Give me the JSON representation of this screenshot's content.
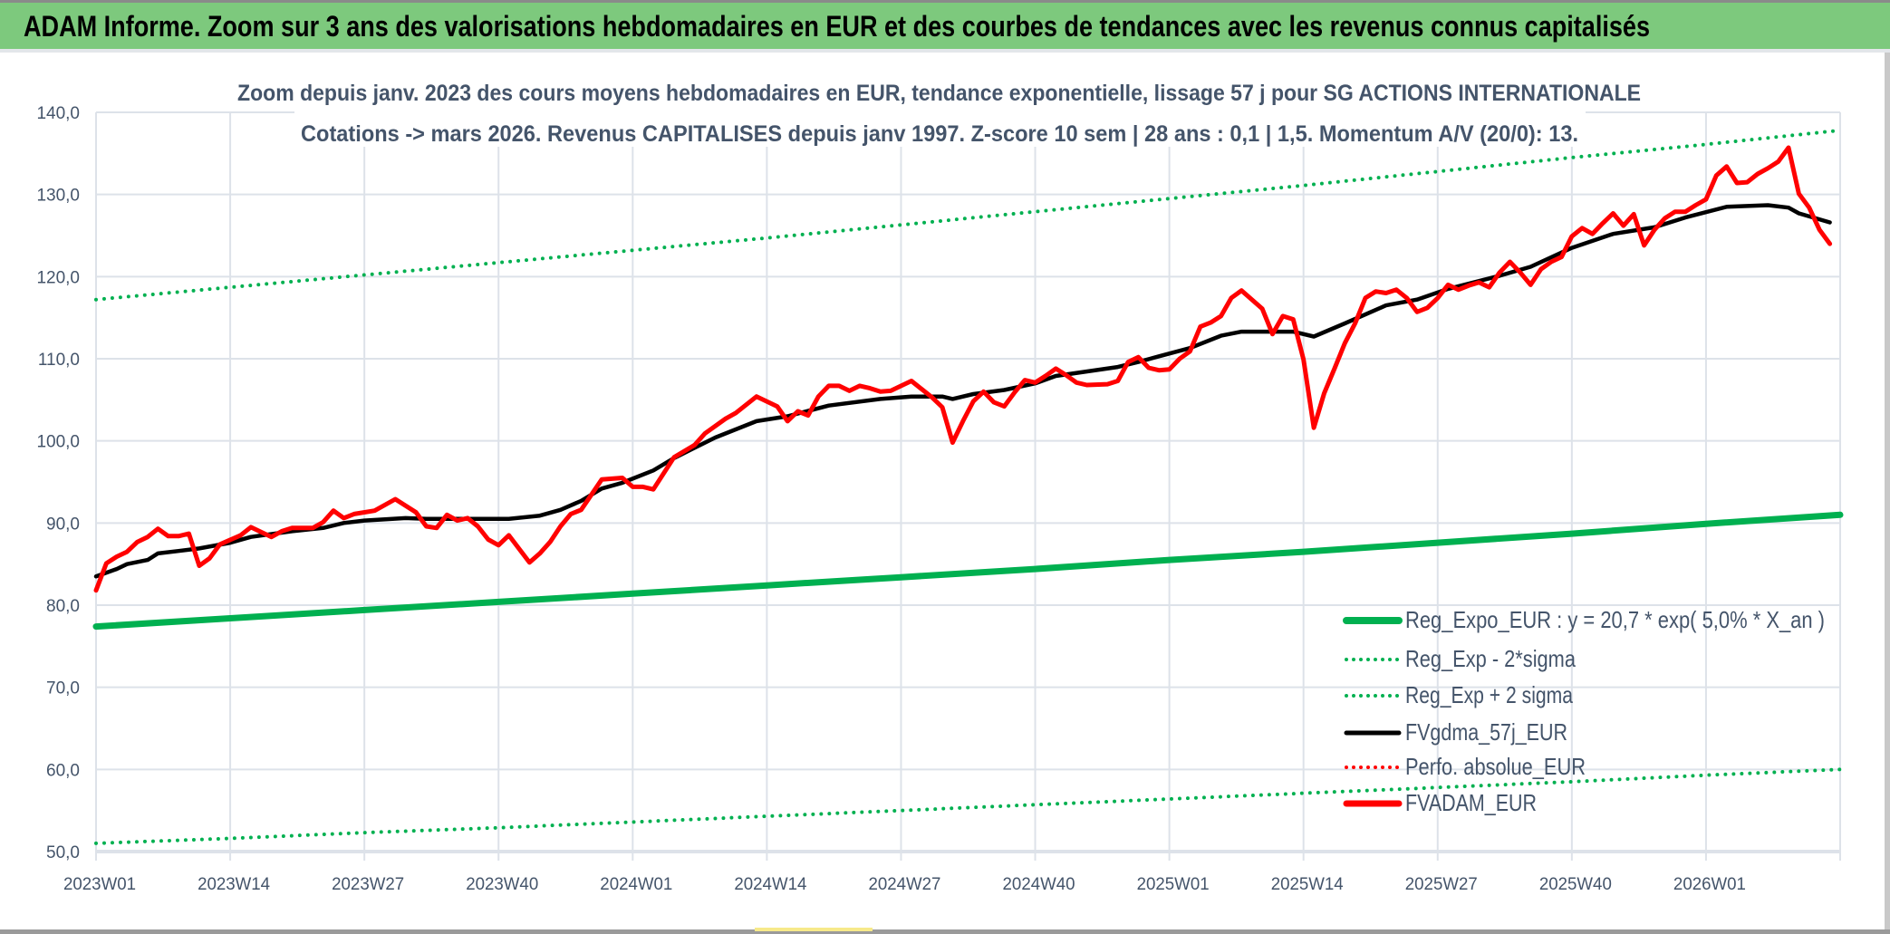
{
  "header": {
    "title": "ADAM Informe. Zoom sur 3 ans des valorisations hebdomadaires en EUR et des courbes de tendances avec les revenus connus capitalisés",
    "background": "#7DC97D"
  },
  "chart_data": {
    "type": "line",
    "title_lines": [
      "Zoom depuis janv. 2023 des cours moyens hebdomadaires en EUR, tendance exponentielle, lissage 57 j pour SG ACTIONS INTERNATIONALE",
      "Cotations -> mars 2026. Revenus CAPITALISES depuis janv 1997. Z-score 10 sem | 28 ans : 0,1 | 1,5. Momentum A/V (20/0): 13."
    ],
    "xlabel": "",
    "ylabel": "",
    "ylim": [
      50,
      140
    ],
    "xlim": [
      "2023W01",
      "2026W14"
    ],
    "grid": true,
    "legend_position": "bottom-right",
    "y_ticks": [
      "140,0",
      "130,0",
      "120,0",
      "110,0",
      "100,0",
      "90,0",
      "80,0",
      "70,0",
      "60,0",
      "50,0"
    ],
    "y_tick_values": [
      140,
      130,
      120,
      110,
      100,
      90,
      80,
      70,
      60,
      50
    ],
    "x_ticks": [
      "2023W01",
      "2023W14",
      "2023W27",
      "2023W40",
      "2024W01",
      "2024W14",
      "2024W27",
      "2024W40",
      "2025W01",
      "2025W14",
      "2025W27",
      "2025W40",
      "2026W01"
    ],
    "series": [
      {
        "name": "Reg_Expo_EUR : y = 20,7 * exp( 5,0% *  X_an )",
        "color": "#00B050",
        "style": "solid",
        "points": [
          [
            "2023W01",
            77.4
          ],
          [
            "2023W14",
            78.4
          ],
          [
            "2023W27",
            79.4
          ],
          [
            "2023W40",
            80.4
          ],
          [
            "2024W01",
            81.4
          ],
          [
            "2024W14",
            82.4
          ],
          [
            "2024W27",
            83.4
          ],
          [
            "2024W40",
            84.4
          ],
          [
            "2025W01",
            85.5
          ],
          [
            "2025W14",
            86.5
          ],
          [
            "2025W27",
            87.6
          ],
          [
            "2025W40",
            88.7
          ],
          [
            "2026W01",
            89.9
          ],
          [
            "2026W14",
            91.0
          ]
        ]
      },
      {
        "name": "Reg_Exp - 2*sigma",
        "color": "#00B050",
        "style": "dotted",
        "points": [
          [
            "2023W01",
            51.0
          ],
          [
            "2023W14",
            51.6
          ],
          [
            "2023W27",
            52.3
          ],
          [
            "2023W40",
            52.9
          ],
          [
            "2024W01",
            53.6
          ],
          [
            "2024W14",
            54.3
          ],
          [
            "2024W27",
            55.0
          ],
          [
            "2024W40",
            55.7
          ],
          [
            "2025W01",
            56.4
          ],
          [
            "2025W14",
            57.1
          ],
          [
            "2025W27",
            57.8
          ],
          [
            "2025W40",
            58.5
          ],
          [
            "2026W01",
            59.3
          ],
          [
            "2026W14",
            60.0
          ]
        ]
      },
      {
        "name": "Reg_Exp + 2 sigma",
        "color": "#00B050",
        "style": "dotted",
        "points": [
          [
            "2023W01",
            117.2
          ],
          [
            "2023W14",
            118.7
          ],
          [
            "2023W27",
            120.2
          ],
          [
            "2023W40",
            121.7
          ],
          [
            "2024W01",
            123.2
          ],
          [
            "2024W14",
            124.7
          ],
          [
            "2024W27",
            126.3
          ],
          [
            "2024W40",
            127.9
          ],
          [
            "2025W01",
            129.5
          ],
          [
            "2025W14",
            131.1
          ],
          [
            "2025W27",
            132.8
          ],
          [
            "2025W40",
            134.5
          ],
          [
            "2026W01",
            136.1
          ],
          [
            "2026W14",
            137.8
          ]
        ]
      },
      {
        "name": "FVgdma_57j_EUR",
        "color": "#000000",
        "style": "solid",
        "points": [
          [
            "2023W01",
            83.5
          ],
          [
            "2023W03",
            84.4
          ],
          [
            "2023W04",
            85.0
          ],
          [
            "2023W06",
            85.5
          ],
          [
            "2023W07",
            86.3
          ],
          [
            "2023W09",
            86.6
          ],
          [
            "2023W11",
            86.9
          ],
          [
            "2023W14",
            87.6
          ],
          [
            "2023W16",
            88.3
          ],
          [
            "2023W20",
            89.0
          ],
          [
            "2023W23",
            89.4
          ],
          [
            "2023W25",
            90.0
          ],
          [
            "2023W27",
            90.3
          ],
          [
            "2023W31",
            90.6
          ],
          [
            "2023W33",
            90.5
          ],
          [
            "2023W37",
            90.5
          ],
          [
            "2023W41",
            90.5
          ],
          [
            "2023W44",
            90.9
          ],
          [
            "2023W46",
            91.6
          ],
          [
            "2023W48",
            92.7
          ],
          [
            "2023W50",
            94.2
          ],
          [
            "2023W52",
            94.9
          ],
          [
            "2024W03",
            96.4
          ],
          [
            "2024W05",
            97.9
          ],
          [
            "2024W09",
            100.4
          ],
          [
            "2024W13",
            102.4
          ],
          [
            "2024W16",
            103.0
          ],
          [
            "2024W20",
            104.3
          ],
          [
            "2024W25",
            105.1
          ],
          [
            "2024W28",
            105.4
          ],
          [
            "2024W31",
            105.4
          ],
          [
            "2024W32",
            105.1
          ],
          [
            "2024W34",
            105.7
          ],
          [
            "2024W37",
            106.2
          ],
          [
            "2024W40",
            107.0
          ],
          [
            "2024W42",
            107.9
          ],
          [
            "2024W48",
            109.0
          ],
          [
            "2024W50",
            109.6
          ],
          [
            "2024W52",
            110.3
          ],
          [
            "2025W03",
            111.3
          ],
          [
            "2025W06",
            112.8
          ],
          [
            "2025W08",
            113.3
          ],
          [
            "2025W10",
            113.3
          ],
          [
            "2025W13",
            113.3
          ],
          [
            "2025W15",
            112.7
          ],
          [
            "2025W18",
            114.3
          ],
          [
            "2025W22",
            116.5
          ],
          [
            "2025W25",
            117.2
          ],
          [
            "2025W28",
            118.5
          ],
          [
            "2025W33",
            120.1
          ],
          [
            "2025W36",
            121.2
          ],
          [
            "2025W40",
            123.5
          ],
          [
            "2025W44",
            125.2
          ],
          [
            "2025W48",
            126.0
          ],
          [
            "2025W51",
            127.2
          ],
          [
            "2026W03",
            128.5
          ],
          [
            "2026W07",
            128.7
          ],
          [
            "2026W09",
            128.4
          ],
          [
            "2026W10",
            127.7
          ],
          [
            "2026W13",
            126.6
          ]
        ]
      },
      {
        "name": "Perfo. absolue_EUR",
        "color": "#FF0000",
        "style": "dotted",
        "points": []
      },
      {
        "name": "FVADAM_EUR",
        "color": "#FF0000",
        "style": "solid",
        "points": [
          [
            "2023W01",
            81.8
          ],
          [
            "2023W02",
            85.1
          ],
          [
            "2023W03",
            85.9
          ],
          [
            "2023W04",
            86.5
          ],
          [
            "2023W05",
            87.7
          ],
          [
            "2023W06",
            88.3
          ],
          [
            "2023W07",
            89.3
          ],
          [
            "2023W08",
            88.4
          ],
          [
            "2023W09",
            88.4
          ],
          [
            "2023W10",
            88.7
          ],
          [
            "2023W11",
            84.8
          ],
          [
            "2023W12",
            85.7
          ],
          [
            "2023W13",
            87.4
          ],
          [
            "2023W15",
            88.5
          ],
          [
            "2023W16",
            89.5
          ],
          [
            "2023W18",
            88.3
          ],
          [
            "2023W19",
            89.0
          ],
          [
            "2023W20",
            89.4
          ],
          [
            "2023W22",
            89.4
          ],
          [
            "2023W23",
            90.1
          ],
          [
            "2023W24",
            91.5
          ],
          [
            "2023W25",
            90.6
          ],
          [
            "2023W26",
            91.1
          ],
          [
            "2023W28",
            91.5
          ],
          [
            "2023W30",
            92.9
          ],
          [
            "2023W32",
            91.3
          ],
          [
            "2023W33",
            89.6
          ],
          [
            "2023W34",
            89.4
          ],
          [
            "2023W35",
            91.0
          ],
          [
            "2023W36",
            90.3
          ],
          [
            "2023W37",
            90.6
          ],
          [
            "2023W38",
            89.6
          ],
          [
            "2023W39",
            88.0
          ],
          [
            "2023W40",
            87.3
          ],
          [
            "2023W41",
            88.5
          ],
          [
            "2023W43",
            85.2
          ],
          [
            "2023W44",
            86.3
          ],
          [
            "2023W45",
            87.7
          ],
          [
            "2023W46",
            89.6
          ],
          [
            "2023W47",
            91.1
          ],
          [
            "2023W48",
            91.6
          ],
          [
            "2023W50",
            95.3
          ],
          [
            "2023W51",
            95.4
          ],
          [
            "2023W52",
            95.5
          ],
          [
            "2024W01",
            94.4
          ],
          [
            "2024W02",
            94.4
          ],
          [
            "2024W03",
            94.1
          ],
          [
            "2024W05",
            98.0
          ],
          [
            "2024W07",
            99.5
          ],
          [
            "2024W08",
            100.9
          ],
          [
            "2024W10",
            102.7
          ],
          [
            "2024W11",
            103.4
          ],
          [
            "2024W13",
            105.4
          ],
          [
            "2024W15",
            104.2
          ],
          [
            "2024W16",
            102.4
          ],
          [
            "2024W17",
            103.6
          ],
          [
            "2024W18",
            103.1
          ],
          [
            "2024W19",
            105.4
          ],
          [
            "2024W20",
            106.7
          ],
          [
            "2024W21",
            106.7
          ],
          [
            "2024W22",
            106.1
          ],
          [
            "2024W23",
            106.7
          ],
          [
            "2024W24",
            106.4
          ],
          [
            "2024W25",
            106.0
          ],
          [
            "2024W26",
            106.1
          ],
          [
            "2024W28",
            107.3
          ],
          [
            "2024W29",
            106.3
          ],
          [
            "2024W30",
            105.3
          ],
          [
            "2024W31",
            104.1
          ],
          [
            "2024W32",
            99.8
          ],
          [
            "2024W33",
            102.4
          ],
          [
            "2024W34",
            104.8
          ],
          [
            "2024W35",
            106.0
          ],
          [
            "2024W36",
            104.7
          ],
          [
            "2024W37",
            104.2
          ],
          [
            "2024W38",
            105.9
          ],
          [
            "2024W39",
            107.4
          ],
          [
            "2024W40",
            107.1
          ],
          [
            "2024W41",
            107.9
          ],
          [
            "2024W42",
            108.8
          ],
          [
            "2024W43",
            108.0
          ],
          [
            "2024W44",
            107.1
          ],
          [
            "2024W45",
            106.8
          ],
          [
            "2024W47",
            106.9
          ],
          [
            "2024W48",
            107.3
          ],
          [
            "2024W49",
            109.6
          ],
          [
            "2024W50",
            110.2
          ],
          [
            "2024W51",
            108.9
          ],
          [
            "2024W52",
            108.6
          ],
          [
            "2025W01",
            108.7
          ],
          [
            "2025W02",
            110.0
          ],
          [
            "2025W03",
            110.9
          ],
          [
            "2025W04",
            113.9
          ],
          [
            "2025W05",
            114.4
          ],
          [
            "2025W06",
            115.2
          ],
          [
            "2025W07",
            117.4
          ],
          [
            "2025W08",
            118.3
          ],
          [
            "2025W09",
            117.2
          ],
          [
            "2025W10",
            116.1
          ],
          [
            "2025W11",
            113.0
          ],
          [
            "2025W12",
            115.2
          ],
          [
            "2025W13",
            114.8
          ],
          [
            "2025W14",
            109.9
          ],
          [
            "2025W15",
            101.6
          ],
          [
            "2025W16",
            105.8
          ],
          [
            "2025W17",
            108.8
          ],
          [
            "2025W18",
            111.9
          ],
          [
            "2025W19",
            114.3
          ],
          [
            "2025W20",
            117.4
          ],
          [
            "2025W21",
            118.2
          ],
          [
            "2025W22",
            118.0
          ],
          [
            "2025W23",
            118.4
          ],
          [
            "2025W24",
            117.4
          ],
          [
            "2025W25",
            115.7
          ],
          [
            "2025W26",
            116.2
          ],
          [
            "2025W27",
            117.4
          ],
          [
            "2025W28",
            119.0
          ],
          [
            "2025W29",
            118.4
          ],
          [
            "2025W30",
            118.9
          ],
          [
            "2025W31",
            119.3
          ],
          [
            "2025W32",
            118.7
          ],
          [
            "2025W33",
            120.5
          ],
          [
            "2025W34",
            121.8
          ],
          [
            "2025W35",
            120.5
          ],
          [
            "2025W36",
            119.0
          ],
          [
            "2025W37",
            120.9
          ],
          [
            "2025W38",
            121.8
          ],
          [
            "2025W39",
            122.4
          ],
          [
            "2025W40",
            124.9
          ],
          [
            "2025W41",
            125.9
          ],
          [
            "2025W42",
            125.2
          ],
          [
            "2025W43",
            126.5
          ],
          [
            "2025W44",
            127.7
          ],
          [
            "2025W45",
            126.2
          ],
          [
            "2025W46",
            127.6
          ],
          [
            "2025W47",
            123.8
          ],
          [
            "2025W48",
            125.7
          ],
          [
            "2025W49",
            127.1
          ],
          [
            "2025W50",
            127.9
          ],
          [
            "2025W51",
            127.9
          ],
          [
            "2025W52",
            128.7
          ],
          [
            "2026W01",
            129.4
          ],
          [
            "2026W02",
            132.3
          ],
          [
            "2026W03",
            133.4
          ],
          [
            "2026W04",
            131.4
          ],
          [
            "2026W05",
            131.5
          ],
          [
            "2026W06",
            132.5
          ],
          [
            "2026W07",
            133.2
          ],
          [
            "2026W08",
            134.0
          ],
          [
            "2026W09",
            135.7
          ],
          [
            "2026W10",
            130.1
          ],
          [
            "2026W11",
            128.4
          ],
          [
            "2026W12",
            125.7
          ],
          [
            "2026W13",
            124.0
          ]
        ]
      }
    ]
  }
}
